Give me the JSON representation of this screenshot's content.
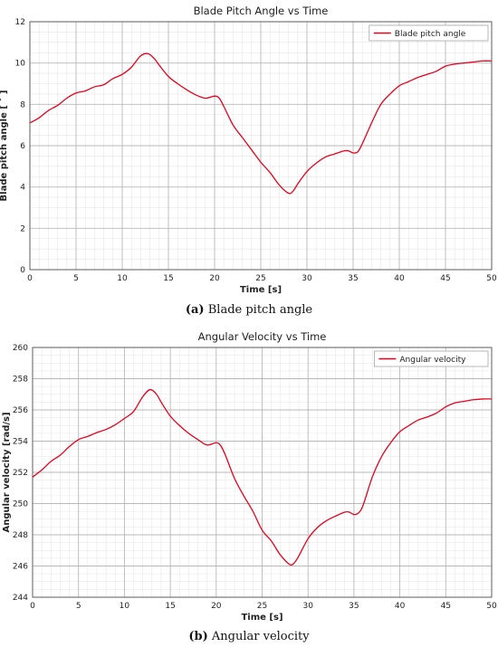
{
  "colors": {
    "series": "#e8001c",
    "grid_major": "#b8b8b8",
    "grid_minor": "#e6e6e6",
    "axis": "#444444",
    "text": "#222222"
  },
  "captions": [
    {
      "tag": "(a)",
      "text": "Blade pitch angle"
    },
    {
      "tag": "(b)",
      "text": "Angular velocity"
    }
  ],
  "chart_data": [
    {
      "type": "line",
      "title": "Blade Pitch Angle vs Time",
      "xlabel": "Time [s]",
      "ylabel": "Blade pitch angle [ ˚ ]",
      "xlim": [
        0,
        50
      ],
      "ylim": [
        0,
        12
      ],
      "xticks": [
        0,
        5,
        10,
        15,
        20,
        25,
        30,
        35,
        40,
        45,
        50
      ],
      "yticks": [
        0,
        2,
        4,
        6,
        8,
        10,
        12
      ],
      "grid": true,
      "legend": "top-right",
      "series": [
        {
          "name": "Blade pitch angle",
          "x": [
            0,
            1,
            2,
            3,
            4,
            5,
            6,
            7,
            8,
            9,
            10,
            11,
            12,
            12.8,
            13.5,
            14,
            15,
            16,
            17,
            18,
            19,
            20,
            20.5,
            21,
            22,
            23,
            24,
            25,
            26,
            27,
            28,
            28.5,
            29,
            30,
            31,
            32,
            33,
            34,
            34.5,
            35,
            35.5,
            36,
            37,
            38,
            39,
            40,
            41,
            42,
            43,
            44,
            45,
            46,
            47,
            48,
            49,
            50
          ],
          "values": [
            7.1,
            7.35,
            7.7,
            7.95,
            8.3,
            8.55,
            8.65,
            8.85,
            8.95,
            9.25,
            9.45,
            9.8,
            10.35,
            10.45,
            10.2,
            9.9,
            9.35,
            9.0,
            8.7,
            8.45,
            8.3,
            8.4,
            8.3,
            7.9,
            7.0,
            6.4,
            5.8,
            5.2,
            4.7,
            4.1,
            3.7,
            3.8,
            4.15,
            4.75,
            5.15,
            5.45,
            5.6,
            5.75,
            5.75,
            5.65,
            5.7,
            6.1,
            7.1,
            8.0,
            8.5,
            8.9,
            9.1,
            9.3,
            9.45,
            9.6,
            9.85,
            9.95,
            10.0,
            10.05,
            10.1,
            10.1
          ]
        }
      ]
    },
    {
      "type": "line",
      "title": "Angular Velocity vs Time",
      "xlabel": "Time [s]",
      "ylabel": "Angular velocity [rad/s]",
      "xlim": [
        0,
        50
      ],
      "ylim": [
        244,
        260
      ],
      "xticks": [
        0,
        5,
        10,
        15,
        20,
        25,
        30,
        35,
        40,
        45,
        50
      ],
      "yticks": [
        244,
        246,
        248,
        250,
        252,
        254,
        256,
        258,
        260
      ],
      "grid": true,
      "legend": "top-right",
      "series": [
        {
          "name": "Angular velocity",
          "x": [
            0,
            1,
            2,
            3,
            4,
            5,
            6,
            7,
            8,
            9,
            10,
            11,
            12,
            12.8,
            13.5,
            14,
            15,
            16,
            17,
            18,
            19,
            20,
            20.5,
            21,
            22,
            23,
            24,
            25,
            26,
            27,
            28,
            28.5,
            29,
            30,
            31,
            32,
            33,
            34,
            34.5,
            35,
            35.5,
            36,
            37,
            38,
            39,
            40,
            41,
            42,
            43,
            44,
            45,
            46,
            47,
            48,
            49,
            50
          ],
          "values": [
            251.7,
            252.15,
            252.7,
            253.1,
            253.65,
            254.1,
            254.3,
            254.55,
            254.75,
            255.05,
            255.45,
            255.9,
            256.85,
            257.3,
            257.0,
            256.5,
            255.6,
            255.0,
            254.5,
            254.1,
            253.75,
            253.9,
            253.7,
            253.1,
            251.6,
            250.5,
            249.5,
            248.3,
            247.6,
            246.7,
            246.1,
            246.2,
            246.65,
            247.75,
            248.45,
            248.9,
            249.2,
            249.45,
            249.45,
            249.3,
            249.4,
            249.9,
            251.7,
            253.0,
            253.9,
            254.6,
            255.0,
            255.35,
            255.55,
            255.8,
            256.2,
            256.45,
            256.55,
            256.65,
            256.7,
            256.7
          ]
        }
      ]
    }
  ]
}
